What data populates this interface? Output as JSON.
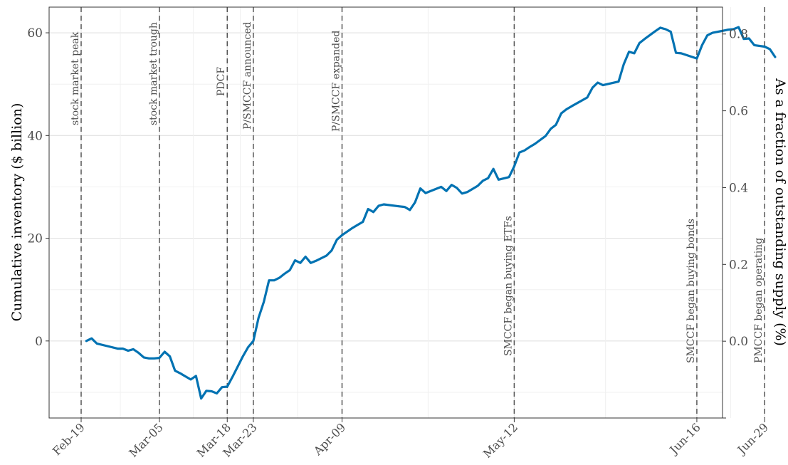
{
  "chart_data": {
    "type": "line",
    "title": "",
    "ylabel": "Cumulative inventory ($ billion)",
    "y2label": "As a fraction of outstanding supply (%)",
    "xlabel": "",
    "x_start": "2020-02-19",
    "x_end": "2020-06-30",
    "ylim": [
      -15,
      65
    ],
    "y2lim": [
      -0.2,
      0.87
    ],
    "y_ticks": [
      0,
      20,
      40,
      60
    ],
    "y2_ticks": [
      0.0,
      0.2,
      0.4,
      0.6,
      0.8
    ],
    "y2_tick_labels": [
      "0.0",
      "0.2",
      "0.4",
      "0.6",
      "0.8"
    ],
    "grid": true,
    "x_ticks": [
      {
        "date": "2020-02-19",
        "label": "Feb-19"
      },
      {
        "date": "2020-03-05",
        "label": "Mar-05"
      },
      {
        "date": "2020-03-18",
        "label": "Mar-18"
      },
      {
        "date": "2020-03-23",
        "label": "Mar-23"
      },
      {
        "date": "2020-04-09",
        "label": "Apr-09"
      },
      {
        "date": "2020-05-12",
        "label": "May-12"
      },
      {
        "date": "2020-06-16",
        "label": "Jun-16"
      },
      {
        "date": "2020-06-29",
        "label": "Jun-29"
      }
    ],
    "events": [
      {
        "date": "2020-02-19",
        "label": "stock market peak"
      },
      {
        "date": "2020-03-05",
        "label": "stock market trough"
      },
      {
        "date": "2020-03-18",
        "label": "PDCF"
      },
      {
        "date": "2020-03-23",
        "label": "P/SMCCF announced"
      },
      {
        "date": "2020-04-09",
        "label": "P/SMCCF expanded"
      },
      {
        "date": "2020-05-12",
        "label": "SMCCF began buying ETFs"
      },
      {
        "date": "2020-06-16",
        "label": "SMCCF began buying bonds"
      },
      {
        "date": "2020-06-29",
        "label": "PMCCF began operating"
      }
    ],
    "series": [
      {
        "color": "#0072B2",
        "points": [
          [
            "2020-02-20",
            0.0
          ],
          [
            "2020-02-21",
            0.5
          ],
          [
            "2020-02-22",
            -0.5
          ],
          [
            "2020-02-24",
            -1.0
          ],
          [
            "2020-02-26",
            -1.5
          ],
          [
            "2020-02-27",
            -1.5
          ],
          [
            "2020-02-28",
            -1.9
          ],
          [
            "2020-02-29",
            -1.6
          ],
          [
            "2020-03-01",
            -2.3
          ],
          [
            "2020-03-02",
            -3.2
          ],
          [
            "2020-03-03",
            -3.4
          ],
          [
            "2020-03-04",
            -3.4
          ],
          [
            "2020-03-05",
            -3.3
          ],
          [
            "2020-03-06",
            -2.1
          ],
          [
            "2020-03-07",
            -3.0
          ],
          [
            "2020-03-08",
            -5.8
          ],
          [
            "2020-03-09",
            -6.3
          ],
          [
            "2020-03-10",
            -6.9
          ],
          [
            "2020-03-11",
            -7.5
          ],
          [
            "2020-03-12",
            -6.8
          ],
          [
            "2020-03-13",
            -11.2
          ],
          [
            "2020-03-14",
            -9.7
          ],
          [
            "2020-03-15",
            -9.8
          ],
          [
            "2020-03-16",
            -10.2
          ],
          [
            "2020-03-17",
            -9.0
          ],
          [
            "2020-03-18",
            -8.9
          ],
          [
            "2020-03-19",
            -7.0
          ],
          [
            "2020-03-20",
            -5.0
          ],
          [
            "2020-03-21",
            -3.0
          ],
          [
            "2020-03-22",
            -1.2
          ],
          [
            "2020-03-23",
            0.0
          ],
          [
            "2020-03-24",
            4.5
          ],
          [
            "2020-03-25",
            7.6
          ],
          [
            "2020-03-26",
            11.8
          ],
          [
            "2020-03-27",
            11.8
          ],
          [
            "2020-03-28",
            12.3
          ],
          [
            "2020-03-29",
            13.1
          ],
          [
            "2020-03-30",
            13.8
          ],
          [
            "2020-03-31",
            15.7
          ],
          [
            "2020-04-01",
            15.2
          ],
          [
            "2020-04-02",
            16.4
          ],
          [
            "2020-04-03",
            15.2
          ],
          [
            "2020-04-04",
            15.6
          ],
          [
            "2020-04-05",
            16.1
          ],
          [
            "2020-04-06",
            16.6
          ],
          [
            "2020-04-07",
            17.6
          ],
          [
            "2020-04-08",
            19.7
          ],
          [
            "2020-04-09",
            20.6
          ],
          [
            "2020-04-10",
            21.3
          ],
          [
            "2020-04-11",
            22.0
          ],
          [
            "2020-04-12",
            22.6
          ],
          [
            "2020-04-13",
            23.2
          ],
          [
            "2020-04-14",
            25.7
          ],
          [
            "2020-04-15",
            25.1
          ],
          [
            "2020-04-16",
            26.3
          ],
          [
            "2020-04-17",
            26.6
          ],
          [
            "2020-04-20",
            26.2
          ],
          [
            "2020-04-21",
            26.1
          ],
          [
            "2020-04-22",
            25.5
          ],
          [
            "2020-04-23",
            27.0
          ],
          [
            "2020-04-24",
            29.7
          ],
          [
            "2020-04-25",
            28.8
          ],
          [
            "2020-04-28",
            30.0
          ],
          [
            "2020-04-29",
            29.2
          ],
          [
            "2020-04-30",
            30.4
          ],
          [
            "2020-05-01",
            29.8
          ],
          [
            "2020-05-02",
            28.7
          ],
          [
            "2020-05-03",
            29.0
          ],
          [
            "2020-05-05",
            30.2
          ],
          [
            "2020-05-06",
            31.2
          ],
          [
            "2020-05-07",
            31.7
          ],
          [
            "2020-05-08",
            33.5
          ],
          [
            "2020-05-09",
            31.4
          ],
          [
            "2020-05-11",
            31.9
          ],
          [
            "2020-05-12",
            34.0
          ],
          [
            "2020-05-13",
            36.7
          ],
          [
            "2020-05-14",
            37.1
          ],
          [
            "2020-05-15",
            37.8
          ],
          [
            "2020-05-16",
            38.4
          ],
          [
            "2020-05-18",
            39.9
          ],
          [
            "2020-05-19",
            41.3
          ],
          [
            "2020-05-20",
            42.1
          ],
          [
            "2020-05-21",
            44.3
          ],
          [
            "2020-05-22",
            45.1
          ],
          [
            "2020-05-23",
            45.7
          ],
          [
            "2020-05-26",
            47.4
          ],
          [
            "2020-05-27",
            49.3
          ],
          [
            "2020-05-28",
            50.3
          ],
          [
            "2020-05-29",
            49.8
          ],
          [
            "2020-06-01",
            50.5
          ],
          [
            "2020-06-02",
            53.9
          ],
          [
            "2020-06-03",
            56.3
          ],
          [
            "2020-06-04",
            56.0
          ],
          [
            "2020-06-05",
            58.0
          ],
          [
            "2020-06-06",
            58.8
          ],
          [
            "2020-06-08",
            60.3
          ],
          [
            "2020-06-09",
            61.0
          ],
          [
            "2020-06-10",
            60.7
          ],
          [
            "2020-06-11",
            60.2
          ],
          [
            "2020-06-12",
            56.1
          ],
          [
            "2020-06-13",
            56.0
          ],
          [
            "2020-06-16",
            55.0
          ],
          [
            "2020-06-17",
            57.6
          ],
          [
            "2020-06-18",
            59.5
          ],
          [
            "2020-06-19",
            60.0
          ],
          [
            "2020-06-22",
            60.6
          ],
          [
            "2020-06-23",
            60.7
          ],
          [
            "2020-06-24",
            61.1
          ],
          [
            "2020-06-25",
            58.8
          ],
          [
            "2020-06-26",
            58.9
          ],
          [
            "2020-06-27",
            57.6
          ],
          [
            "2020-06-29",
            57.3
          ],
          [
            "2020-06-30",
            56.8
          ],
          [
            "2020-07-01",
            55.3
          ]
        ]
      }
    ]
  }
}
